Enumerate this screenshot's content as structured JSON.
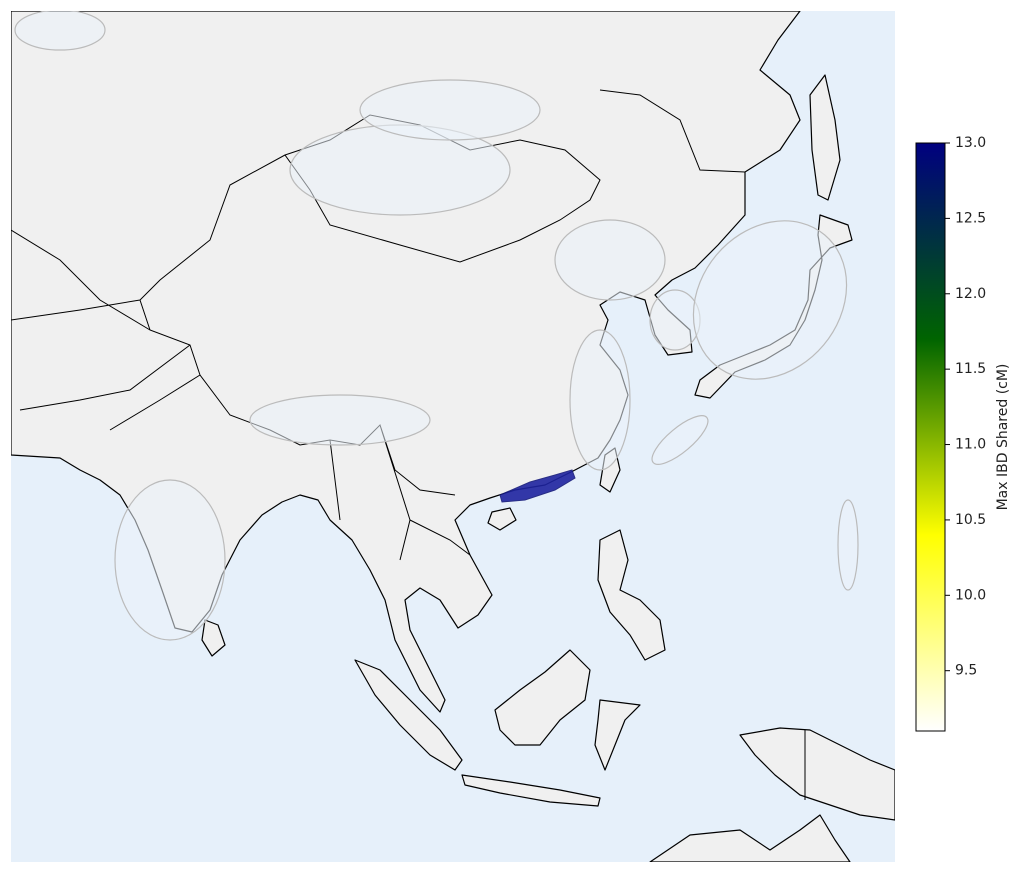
{
  "colorbar": {
    "label": "Max IBD Shared (cM)",
    "clim": [
      9.1,
      13.0
    ],
    "ticks": [
      {
        "value": 13.0,
        "label": "13.0"
      },
      12.5,
      {
        "value": 12.0,
        "label": "12.0"
      },
      11.5,
      {
        "value": 11.0,
        "label": "11.0"
      },
      10.5,
      {
        "value": 10.0,
        "label": "10.0"
      },
      9.5
    ],
    "colormap": [
      "#ffffff",
      "#ffff00",
      "#006400",
      "#000080"
    ]
  }
}
